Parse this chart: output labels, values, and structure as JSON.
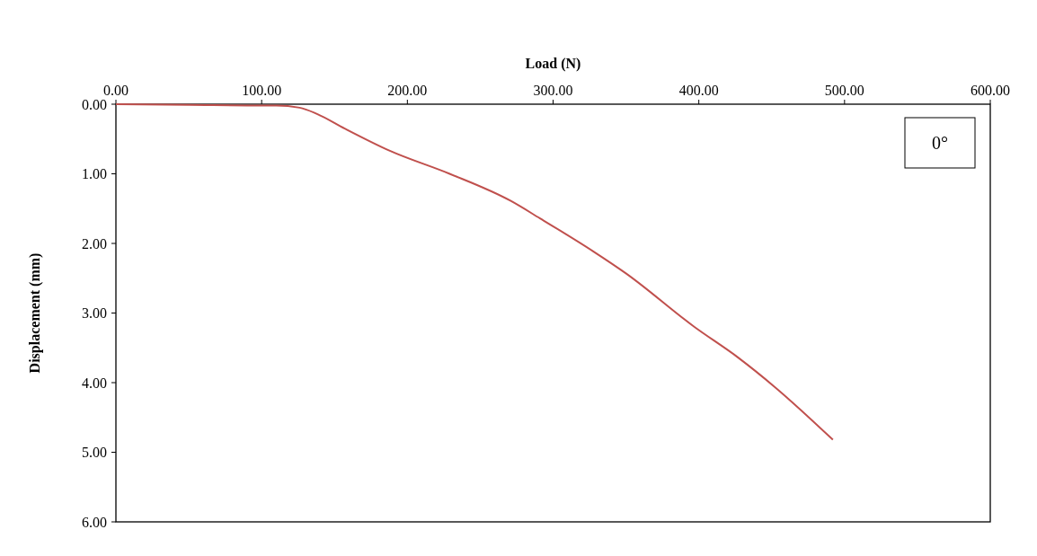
{
  "chart_data": {
    "type": "line",
    "xlabel": "Load (N)",
    "ylabel": "Displacement (mm)",
    "annotations": [
      "0°"
    ],
    "x": [
      0,
      50,
      100,
      110,
      126,
      138,
      157,
      188,
      229,
      271,
      291,
      328,
      350,
      397,
      427,
      452,
      492
    ],
    "series": [
      {
        "color": "#c0504d",
        "values": [
          0,
          0.01,
          0.02,
          0.02,
          0.05,
          0.14,
          0.35,
          0.67,
          1.0,
          1.39,
          1.64,
          2.12,
          2.43,
          3.2,
          3.64,
          4.06,
          4.82
        ]
      }
    ],
    "xlim": [
      0,
      600
    ],
    "xticks": [
      {
        "value": 0,
        "label": "0.00"
      },
      {
        "value": 100,
        "label": "100.00"
      },
      {
        "value": 200,
        "label": "200.00"
      },
      {
        "value": 300,
        "label": "300.00"
      },
      {
        "value": 400,
        "label": "400.00"
      },
      {
        "value": 500,
        "label": "500.00"
      },
      {
        "value": 600,
        "label": "600.00"
      }
    ],
    "ylim": [
      6,
      0
    ],
    "yticks": [
      {
        "value": 0,
        "label": "0.00"
      },
      {
        "value": 1,
        "label": "1.00"
      },
      {
        "value": 2,
        "label": "2.00"
      },
      {
        "value": 3,
        "label": "3.00"
      },
      {
        "value": 4,
        "label": "4.00"
      },
      {
        "value": 5,
        "label": "5.00"
      },
      {
        "value": 6,
        "label": "6.00"
      }
    ],
    "grid": false,
    "marker": "none",
    "line_style": "solid"
  }
}
